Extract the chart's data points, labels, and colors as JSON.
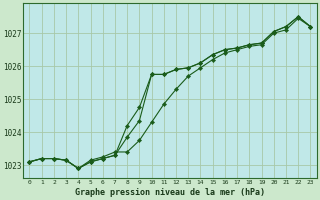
{
  "title": "Graphe pression niveau de la mer (hPa)",
  "background_color": "#cce8cc",
  "plot_bg_color": "#c0e8e8",
  "grid_color": "#a8c8a8",
  "line_color": "#1a5c1a",
  "marker_color": "#1a5c1a",
  "xlim": [
    -0.5,
    23.5
  ],
  "ylim": [
    1022.6,
    1027.9
  ],
  "xticks": [
    0,
    1,
    2,
    3,
    4,
    5,
    6,
    7,
    8,
    9,
    10,
    11,
    12,
    13,
    14,
    15,
    16,
    17,
    18,
    19,
    20,
    21,
    22,
    23
  ],
  "yticks": [
    1023,
    1024,
    1025,
    1026,
    1027
  ],
  "series": [
    [
      1023.1,
      1023.2,
      1023.2,
      1023.15,
      1022.9,
      1023.1,
      1023.2,
      1023.3,
      1023.85,
      1024.35,
      1025.75,
      1025.75,
      1025.9,
      1025.95,
      1026.1,
      1026.35,
      1026.5,
      1026.55,
      1026.65,
      1026.7,
      1027.05,
      1027.2,
      1027.5,
      1027.2
    ],
    [
      1023.1,
      1023.2,
      1023.2,
      1023.15,
      1022.9,
      1023.1,
      1023.2,
      1023.3,
      1024.2,
      1024.75,
      1025.75,
      1025.75,
      1025.9,
      1025.95,
      1026.1,
      1026.35,
      1026.5,
      1026.55,
      1026.65,
      1026.7,
      1027.05,
      1027.2,
      1027.5,
      1027.2
    ],
    [
      1023.1,
      1023.2,
      1023.2,
      1023.15,
      1022.9,
      1023.15,
      1023.25,
      1023.4,
      1023.4,
      1023.75,
      1024.3,
      1024.85,
      1025.3,
      1025.7,
      1025.95,
      1026.2,
      1026.4,
      1026.5,
      1026.6,
      1026.65,
      1027.0,
      1027.1,
      1027.45,
      1027.2
    ]
  ]
}
